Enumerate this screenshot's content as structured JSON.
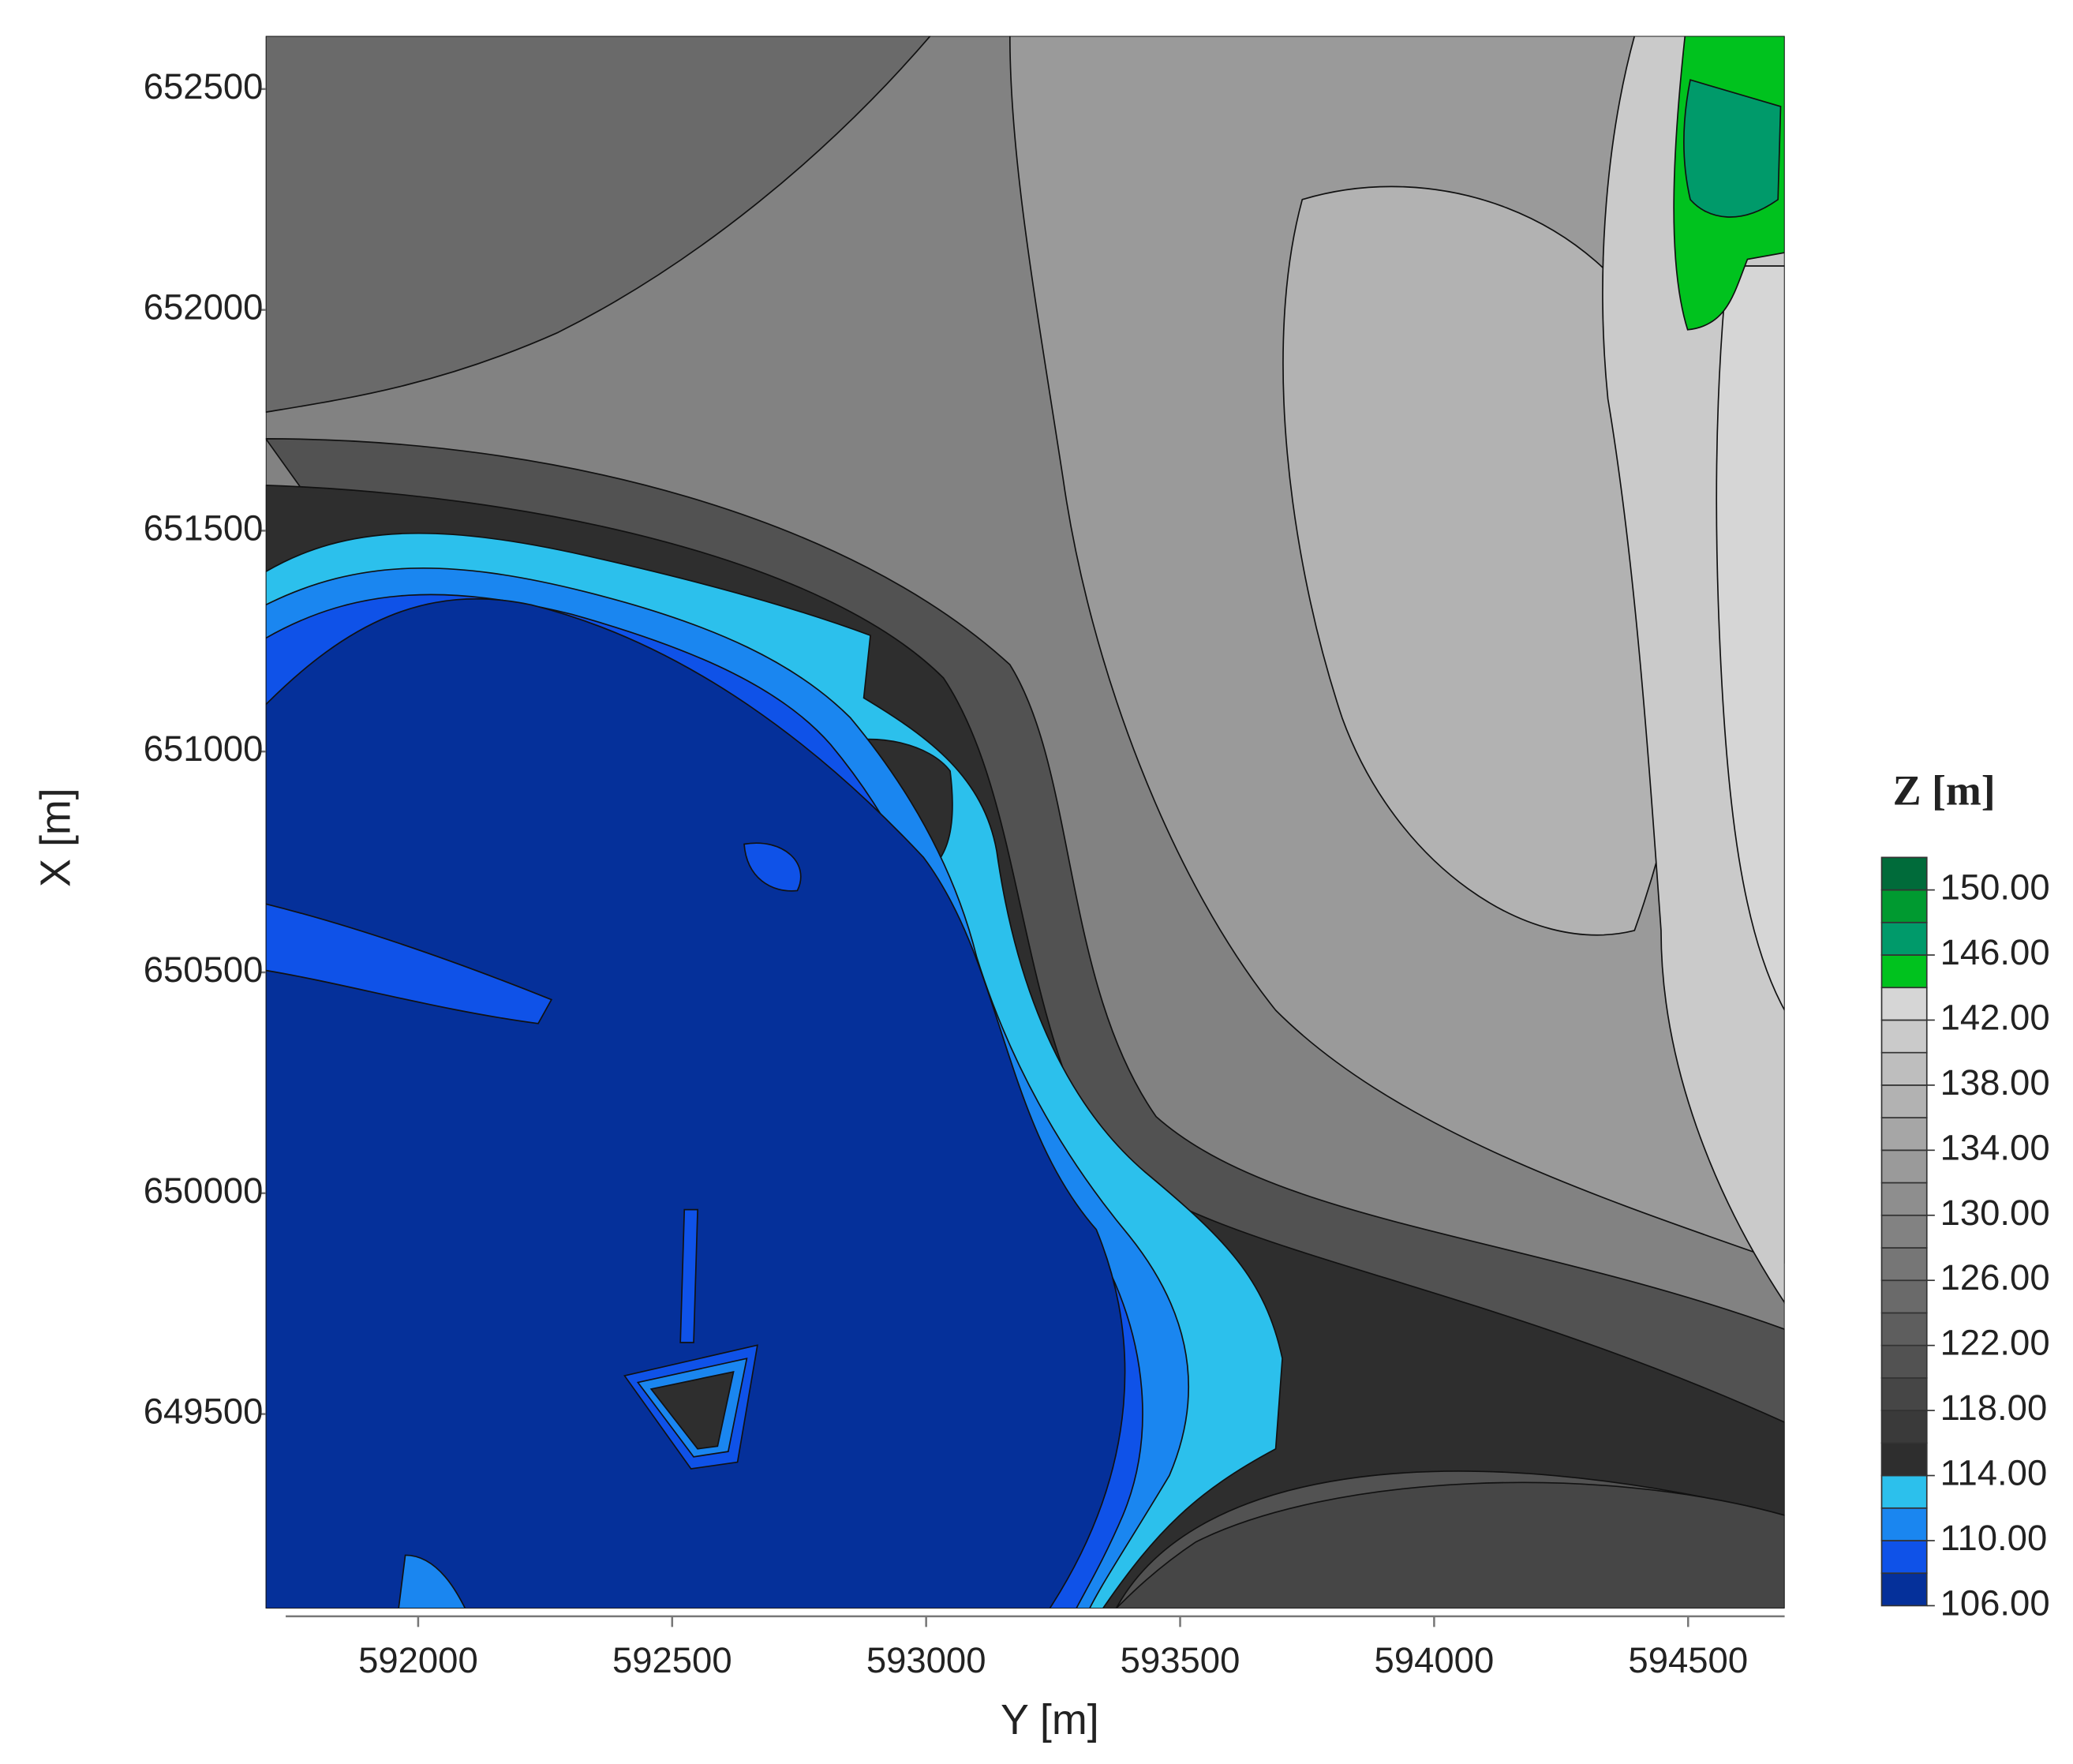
{
  "chart_data": {
    "type": "contour",
    "x_label": "Y [m]",
    "y_label": "X [m]",
    "xlim": [
      591700,
      594690
    ],
    "ylim": [
      649060,
      652620
    ],
    "xticks": [
      592000,
      592500,
      593000,
      593500,
      594000,
      594500
    ],
    "yticks": [
      649500,
      650000,
      650500,
      651000,
      651500,
      652000,
      652500
    ],
    "colorbar": {
      "title": "Z [m]",
      "levels": [
        106,
        108,
        110,
        112,
        114,
        116,
        118,
        120,
        122,
        124,
        126,
        128,
        130,
        132,
        134,
        136,
        138,
        140,
        142,
        144,
        146,
        148,
        150,
        152
      ],
      "colors": [
        "#05309a",
        "#0f52e8",
        "#1a86f0",
        "#2cc0ec",
        "#2e2e2e",
        "#3a3a3a",
        "#464646",
        "#525252",
        "#5e5e5e",
        "#6a6a6a",
        "#767676",
        "#828282",
        "#8e8e8e",
        "#9a9a9a",
        "#a6a6a6",
        "#b2b2b2",
        "#bebebe",
        "#cacaca",
        "#d6d6d6",
        "#00c21e",
        "#009a6a",
        "#009a30",
        "#006b3a"
      ],
      "ticks": [
        {
          "value": 106,
          "label": "106.00"
        },
        {
          "value": 110,
          "label": "110.00"
        },
        {
          "value": 114,
          "label": "114.00"
        },
        {
          "value": 118,
          "label": "118.00"
        },
        {
          "value": 122,
          "label": "122.00"
        },
        {
          "value": 126,
          "label": "126.00"
        },
        {
          "value": 130,
          "label": "130.00"
        },
        {
          "value": 134,
          "label": "134.00"
        },
        {
          "value": 138,
          "label": "138.00"
        },
        {
          "value": 142,
          "label": "142.00"
        },
        {
          "value": 146,
          "label": "146.00"
        },
        {
          "value": 150,
          "label": "150.00"
        }
      ]
    }
  }
}
